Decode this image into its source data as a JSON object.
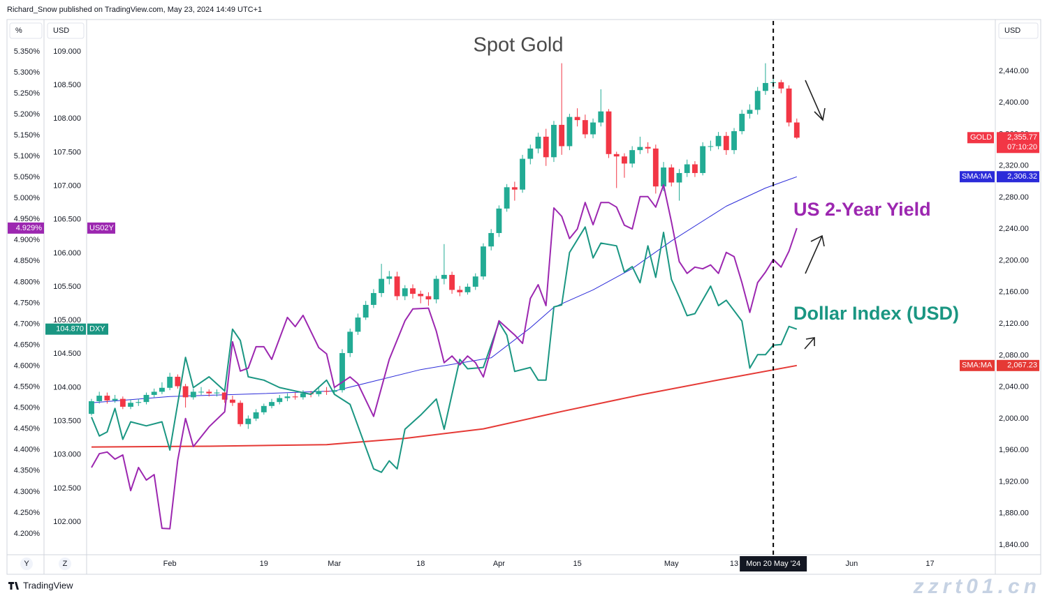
{
  "header": "Richard_Snow published on TradingView.com, May 23, 2024 14:49 UTC+1",
  "footer": "TradingView",
  "scale_buttons": [
    "Y",
    "Z"
  ],
  "watermark": "zzrt01.cn",
  "chart_data": {
    "type": "candlestick",
    "title": "Spot Gold",
    "xlim": [
      -0.62,
      115.33
    ],
    "xticks": [
      {
        "value": 10,
        "label": "Feb"
      },
      {
        "value": 22,
        "label": "19"
      },
      {
        "value": 31,
        "label": "Mar"
      },
      {
        "value": 42,
        "label": "18"
      },
      {
        "value": 52,
        "label": "Apr"
      },
      {
        "value": 62,
        "label": "15"
      },
      {
        "value": 74,
        "label": "May"
      },
      {
        "value": 82,
        "label": "13"
      },
      {
        "value": 97,
        "label": "Jun"
      },
      {
        "value": 107,
        "label": "17"
      }
    ],
    "crosshair": {
      "value": 87,
      "label": "Mon 20 May '24"
    },
    "grid": false,
    "y_unit": "USD",
    "ylim": [
      1827.6,
      2503.6
    ],
    "yticks": [
      {
        "value": 1840,
        "label": "1,840.00"
      },
      {
        "value": 1880,
        "label": "1,880.00"
      },
      {
        "value": 1920,
        "label": "1,920.00"
      },
      {
        "value": 1960,
        "label": "1,960.00"
      },
      {
        "value": 2000,
        "label": "2,000.00"
      },
      {
        "value": 2040,
        "label": "2,040.00"
      },
      {
        "value": 2080,
        "label": "2,080.00"
      },
      {
        "value": 2120,
        "label": "2,120.00"
      },
      {
        "value": 2160,
        "label": "2,160.00"
      },
      {
        "value": 2200,
        "label": "2,200.00"
      },
      {
        "value": 2240,
        "label": "2,240.00"
      },
      {
        "value": 2280,
        "label": "2,280.00"
      },
      {
        "value": 2320,
        "label": "2,320.00"
      },
      {
        "value": 2360,
        "label": "2,360.00"
      },
      {
        "value": 2400,
        "label": "2,400.00"
      },
      {
        "value": 2440,
        "label": "2,440.00"
      }
    ],
    "y2_unit": "USD",
    "y2lim": [
      101.512,
      109.457
    ],
    "y2ticks": [
      {
        "value": 102,
        "label": "102.000"
      },
      {
        "value": 102.5,
        "label": "102.500"
      },
      {
        "value": 103,
        "label": "103.000"
      },
      {
        "value": 103.5,
        "label": "103.500"
      },
      {
        "value": 104,
        "label": "104.000"
      },
      {
        "value": 104.5,
        "label": "104.500"
      },
      {
        "value": 105,
        "label": "105.000"
      },
      {
        "value": 105.5,
        "label": "105.500"
      },
      {
        "value": 106,
        "label": "106.000"
      },
      {
        "value": 106.5,
        "label": "106.500"
      },
      {
        "value": 107,
        "label": "107.000"
      },
      {
        "value": 107.5,
        "label": "107.500"
      },
      {
        "value": 108,
        "label": "108.000"
      },
      {
        "value": 108.5,
        "label": "108.500"
      },
      {
        "value": 109,
        "label": "109.000"
      }
    ],
    "y3_unit": "%",
    "y3lim": [
      4.15,
      5.423
    ],
    "y3ticks": [
      {
        "value": 4.2,
        "label": "4.200%"
      },
      {
        "value": 4.25,
        "label": "4.250%"
      },
      {
        "value": 4.3,
        "label": "4.300%"
      },
      {
        "value": 4.35,
        "label": "4.350%"
      },
      {
        "value": 4.4,
        "label": "4.400%"
      },
      {
        "value": 4.45,
        "label": "4.450%"
      },
      {
        "value": 4.5,
        "label": "4.500%"
      },
      {
        "value": 4.55,
        "label": "4.550%"
      },
      {
        "value": 4.6,
        "label": "4.600%"
      },
      {
        "value": 4.65,
        "label": "4.650%"
      },
      {
        "value": 4.7,
        "label": "4.700%"
      },
      {
        "value": 4.75,
        "label": "4.750%"
      },
      {
        "value": 4.8,
        "label": "4.800%"
      },
      {
        "value": 4.85,
        "label": "4.850%"
      },
      {
        "value": 4.9,
        "label": "4.900%"
      },
      {
        "value": 4.95,
        "label": "4.950%"
      },
      {
        "value": 5.0,
        "label": "5.000%"
      },
      {
        "value": 5.05,
        "label": "5.050%"
      },
      {
        "value": 5.1,
        "label": "5.100%"
      },
      {
        "value": 5.15,
        "label": "5.150%"
      },
      {
        "value": 5.2,
        "label": "5.200%"
      },
      {
        "value": 5.25,
        "label": "5.250%"
      },
      {
        "value": 5.3,
        "label": "5.300%"
      },
      {
        "value": 5.35,
        "label": "5.350%"
      }
    ],
    "candles": {
      "name": "GOLD",
      "up_color": "#22ab94",
      "down_color": "#f23645",
      "last_label": {
        "value": 2355.77,
        "label": "2,355.77"
      },
      "countdown": "07:10:20",
      "open": [
        2006,
        2022,
        2029,
        2023,
        2025,
        2015,
        2020,
        2021,
        2030,
        2034,
        2039,
        2053,
        2041,
        2027,
        2034,
        2034,
        2032,
        2033,
        2024,
        2020,
        1993,
        2000,
        2008,
        2016,
        2021,
        2026,
        2028,
        2027,
        2032,
        2031,
        2035,
        2034,
        2036,
        2083,
        2110,
        2128,
        2144,
        2159,
        2177,
        2180,
        2155,
        2165,
        2158,
        2155,
        2151,
        2177,
        2182,
        2163,
        2160,
        2167,
        2180,
        2218,
        2235,
        2266,
        2293,
        2290,
        2329,
        2342,
        2357,
        2331,
        2372,
        2345,
        2382,
        2378,
        2360,
        2375,
        2389,
        2335,
        2332,
        2323,
        2340,
        2344,
        2342,
        2294,
        2318,
        2299,
        2311,
        2322,
        2311,
        2345,
        2345,
        2358,
        2340,
        2364,
        2386,
        2391,
        2415,
        2425,
        2426,
        2418,
        2375
      ],
      "high": [
        2025,
        2034,
        2033,
        2030,
        2028,
        2024,
        2025,
        2033,
        2038,
        2046,
        2058,
        2056,
        2044,
        2038,
        2040,
        2037,
        2037,
        2036,
        2029,
        2023,
        2004,
        2012,
        2019,
        2025,
        2030,
        2032,
        2033,
        2036,
        2035,
        2039,
        2040,
        2040,
        2088,
        2114,
        2133,
        2149,
        2164,
        2196,
        2187,
        2186,
        2169,
        2170,
        2162,
        2160,
        2181,
        2221,
        2186,
        2168,
        2171,
        2184,
        2222,
        2240,
        2270,
        2297,
        2300,
        2334,
        2347,
        2362,
        2367,
        2377,
        2450,
        2386,
        2393,
        2385,
        2380,
        2417,
        2392,
        2338,
        2336,
        2345,
        2357,
        2350,
        2347,
        2325,
        2322,
        2316,
        2328,
        2326,
        2350,
        2352,
        2363,
        2363,
        2368,
        2391,
        2398,
        2420,
        2450,
        2432,
        2429,
        2422,
        2380
      ],
      "low": [
        2004,
        2019,
        2019,
        2020,
        2012,
        2012,
        2016,
        2018,
        2027,
        2031,
        2036,
        2038,
        2014,
        2024,
        2030,
        2028,
        2028,
        2020,
        2016,
        1990,
        1987,
        1997,
        2005,
        2013,
        2018,
        2022,
        2024,
        2024,
        2027,
        2028,
        2030,
        2031,
        2033,
        2078,
        2106,
        2125,
        2140,
        2154,
        2170,
        2150,
        2150,
        2152,
        2146,
        2143,
        2146,
        2170,
        2158,
        2155,
        2157,
        2163,
        2176,
        2213,
        2230,
        2262,
        2276,
        2286,
        2322,
        2336,
        2320,
        2325,
        2334,
        2340,
        2370,
        2355,
        2355,
        2370,
        2330,
        2292,
        2305,
        2318,
        2335,
        2336,
        2285,
        2288,
        2294,
        2276,
        2306,
        2306,
        2308,
        2339,
        2341,
        2334,
        2335,
        2360,
        2380,
        2385,
        2410,
        2418,
        2412,
        2370,
        2354
      ],
      "close": [
        2022,
        2029,
        2023,
        2025,
        2015,
        2020,
        2021,
        2030,
        2034,
        2039,
        2053,
        2041,
        2027,
        2034,
        2034,
        2032,
        2033,
        2024,
        2020,
        1993,
        2000,
        2008,
        2016,
        2021,
        2026,
        2028,
        2027,
        2032,
        2031,
        2035,
        2034,
        2036,
        2083,
        2110,
        2128,
        2144,
        2159,
        2177,
        2180,
        2155,
        2165,
        2158,
        2155,
        2151,
        2177,
        2182,
        2163,
        2160,
        2167,
        2180,
        2218,
        2235,
        2266,
        2293,
        2290,
        2329,
        2342,
        2357,
        2331,
        2372,
        2345,
        2382,
        2378,
        2360,
        2375,
        2389,
        2335,
        2332,
        2323,
        2340,
        2344,
        2342,
        2294,
        2318,
        2299,
        2311,
        2322,
        2311,
        2345,
        2345,
        2358,
        2340,
        2364,
        2386,
        2391,
        2415,
        2425,
        2426,
        2418,
        2375,
        2355.77
      ]
    },
    "series": [
      {
        "name": "SMA:MA",
        "axis": "y",
        "color": "#e53935",
        "width": 2,
        "last_label": {
          "value": 2067.23,
          "label": "2,067.23"
        },
        "x": [
          0,
          15,
          30,
          40,
          50,
          60,
          70,
          80,
          90
        ],
        "values": [
          1964,
          1965,
          1967,
          1975,
          1987,
          2009,
          2030,
          2049,
          2067.23
        ]
      },
      {
        "name": "SMA:MA",
        "axis": "y",
        "color": "#2b2bd9",
        "width": 1,
        "last_label": {
          "value": 2306.32,
          "label": "2,306.32"
        },
        "x": [
          0,
          10,
          20,
          31,
          42,
          51,
          56,
          59,
          64,
          69,
          74,
          81,
          86,
          90
        ],
        "values": [
          2020,
          2028,
          2031,
          2035,
          2062,
          2077,
          2115,
          2141,
          2163,
          2190,
          2225,
          2269,
          2292,
          2306.32
        ]
      },
      {
        "name": "DXY",
        "axis": "y2",
        "color": "#1a9682",
        "width": 2,
        "last_label": {
          "value": 104.87,
          "label": "104.870"
        },
        "x": [
          0,
          1,
          2,
          3,
          4,
          5,
          7,
          9,
          10,
          12,
          13,
          15,
          17,
          18,
          19,
          20,
          22,
          24,
          26,
          28,
          30,
          31,
          33,
          36,
          37,
          38,
          39,
          40,
          42,
          44,
          45,
          47,
          48,
          50,
          52,
          53,
          54,
          56,
          57,
          58,
          59,
          60,
          61,
          63,
          64,
          65,
          67,
          68,
          69,
          70,
          71,
          72,
          73,
          74,
          75,
          76,
          77,
          79,
          80,
          81,
          83,
          84,
          85,
          86,
          87,
          88,
          89,
          90
        ],
        "values": [
          103.56,
          103.28,
          103.34,
          103.69,
          103.23,
          103.49,
          103.43,
          103.49,
          103.07,
          104.45,
          104.0,
          104.16,
          103.95,
          104.87,
          104.7,
          104.16,
          104.11,
          104.0,
          103.95,
          103.9,
          104.11,
          103.9,
          103.75,
          102.79,
          102.74,
          102.91,
          102.79,
          103.38,
          103.59,
          103.83,
          103.38,
          104.42,
          104.28,
          104.3,
          104.97,
          104.78,
          104.24,
          104.3,
          104.11,
          104.11,
          105.2,
          105.23,
          106.01,
          106.39,
          105.93,
          106.15,
          106.11,
          105.72,
          105.8,
          105.56,
          106.11,
          105.64,
          106.31,
          105.61,
          105.35,
          105.07,
          105.1,
          105.51,
          105.22,
          105.3,
          104.99,
          104.29,
          104.49,
          104.49,
          104.63,
          104.64,
          104.91,
          104.87
        ]
      },
      {
        "name": "US02Y",
        "axis": "y3",
        "color": "#9c27b0",
        "width": 2,
        "last_label": {
          "value": 4.929,
          "label": "4.929%"
        },
        "x": [
          0,
          1,
          2,
          3,
          4,
          5,
          6,
          7,
          8,
          9,
          10,
          11,
          12,
          13,
          15,
          17,
          18,
          19,
          20,
          21,
          22,
          23,
          25,
          26,
          27,
          29,
          30,
          31,
          33,
          34,
          36,
          38,
          40,
          41,
          43,
          44,
          45,
          46,
          47,
          48,
          49,
          50,
          52,
          54,
          55,
          56,
          57,
          58,
          59,
          60,
          61,
          62,
          63,
          64,
          65,
          66,
          67,
          68,
          69,
          70,
          71,
          72,
          73,
          74,
          75,
          76,
          77,
          78,
          79,
          80,
          81,
          82,
          83,
          84,
          85,
          86,
          87,
          88,
          89,
          90
        ],
        "values": [
          4.358,
          4.391,
          4.395,
          4.378,
          4.388,
          4.303,
          4.358,
          4.328,
          4.341,
          4.213,
          4.212,
          4.375,
          4.475,
          4.408,
          4.455,
          4.491,
          4.658,
          4.588,
          4.595,
          4.646,
          4.646,
          4.616,
          4.716,
          4.694,
          4.721,
          4.644,
          4.629,
          4.549,
          4.574,
          4.558,
          4.48,
          4.616,
          4.708,
          4.736,
          4.738,
          4.683,
          4.608,
          4.624,
          4.603,
          4.624,
          4.608,
          4.574,
          4.708,
          4.674,
          4.654,
          4.761,
          4.794,
          4.744,
          4.977,
          4.957,
          4.904,
          4.927,
          4.99,
          4.937,
          4.99,
          4.99,
          4.979,
          4.936,
          4.927,
          5.004,
          5.004,
          4.979,
          5.032,
          4.944,
          4.849,
          4.821,
          4.836,
          4.832,
          4.841,
          4.821,
          4.871,
          4.861,
          4.799,
          4.728,
          4.799,
          4.824,
          4.854,
          4.836,
          4.874,
          4.929
        ]
      }
    ],
    "annotations": [
      {
        "text": "US 2-Year Yield",
        "color": "#9c27b0"
      },
      {
        "text": "Dollar Index (USD)",
        "color": "#1a9682"
      }
    ]
  }
}
